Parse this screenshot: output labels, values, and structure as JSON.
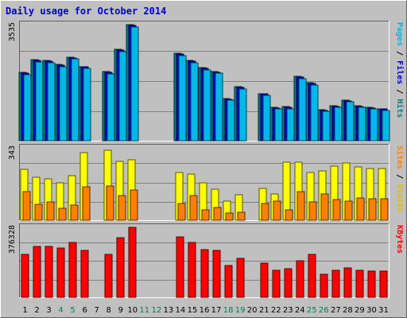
{
  "chart_data": {
    "type": "bar",
    "title": "Daily usage for October 2014",
    "days": [
      "1",
      "2",
      "3",
      "4",
      "5",
      "6",
      "7",
      "8",
      "9",
      "10",
      "11",
      "12",
      "13",
      "14",
      "15",
      "16",
      "17",
      "18",
      "19",
      "20",
      "21",
      "22",
      "23",
      "24",
      "25",
      "26",
      "27",
      "28",
      "29",
      "30",
      "31"
    ],
    "weekend_days": [
      "4",
      "5",
      "11",
      "12",
      "18",
      "19",
      "25",
      "26"
    ],
    "panels": [
      {
        "id": "hits",
        "ymax_label": "3535",
        "ymax": 3535,
        "right_labels": [
          {
            "text": "Pages",
            "color": "#00b8e6"
          },
          {
            "text": " / ",
            "color": "#000000"
          },
          {
            "text": "Files",
            "color": "#0000cc"
          },
          {
            "text": " / ",
            "color": "#000000"
          },
          {
            "text": "Hits",
            "color": "#008080"
          }
        ],
        "series": [
          {
            "name": "Hits",
            "color": "#008080",
            "values": [
              2090,
              2460,
              2440,
              2320,
              2550,
              2260,
              0,
              2100,
              2790,
              3535,
              0,
              0,
              0,
              2670,
              2440,
              2220,
              2110,
              1290,
              1640,
              0,
              1440,
              1010,
              1030,
              1960,
              1760,
              940,
              1060,
              1240,
              1070,
              1010,
              980
            ]
          },
          {
            "name": "Files",
            "color": "#0000cc",
            "values": [
              2070,
              2440,
              2420,
              2300,
              2530,
              2240,
              0,
              2080,
              2770,
              3510,
              0,
              0,
              0,
              2650,
              2420,
              2200,
              2090,
              1270,
              1620,
              0,
              1420,
              990,
              1010,
              1940,
              1740,
              920,
              1040,
              1220,
              1050,
              990,
              960
            ]
          },
          {
            "name": "Pages",
            "color": "#00b8e6",
            "values": [
              2020,
              2390,
              2380,
              2260,
              2490,
              2200,
              0,
              2030,
              2720,
              3470,
              0,
              0,
              0,
              2600,
              2380,
              2160,
              2050,
              1240,
              1580,
              0,
              1380,
              960,
              980,
              1890,
              1700,
              890,
              1010,
              1180,
              1020,
              960,
              930
            ]
          }
        ]
      },
      {
        "id": "visits",
        "ymax_label": "343",
        "ymax": 343,
        "right_labels": [
          {
            "text": "Sites",
            "color": "#ff8000"
          },
          {
            "text": " / ",
            "color": "#000000"
          },
          {
            "text": "Visits",
            "color": "#e0c000"
          }
        ],
        "series": [
          {
            "name": "Visits",
            "color": "#ffff00",
            "values": [
              243,
              205,
              196,
              178,
              210,
              320,
              0,
              330,
              280,
              287,
              0,
              0,
              0,
              227,
              220,
              178,
              146,
              91,
              119,
              0,
              150,
              124,
              274,
              274,
              227,
              234,
              255,
              270,
              251,
              244,
              244
            ]
          },
          {
            "name": "Sites",
            "color": "#ff8000",
            "values": [
              136,
              76,
              86,
              58,
              70,
              160,
              0,
              163,
              116,
              144,
              0,
              0,
              0,
              78,
              115,
              48,
              62,
              35,
              38,
              0,
              80,
              90,
              48,
              137,
              88,
              125,
              97,
              92,
              106,
              100,
              100
            ]
          }
        ]
      },
      {
        "id": "kbytes",
        "ymax_label": "376328",
        "ymax": 376328,
        "right_labels": [
          {
            "text": "KBytes",
            "color": "#ff0000"
          }
        ],
        "series": [
          {
            "name": "KBytes",
            "color": "#ff0000",
            "values": [
              233000,
              274000,
              274000,
              265000,
              296000,
              252000,
              0,
              233000,
              322000,
              376328,
              0,
              0,
              0,
              326000,
              296000,
              258000,
              252000,
              173000,
              209000,
              0,
              183000,
              146000,
              153000,
              195000,
              233000,
              126000,
              146000,
              157000,
              146000,
              139000,
              139000
            ]
          }
        ]
      }
    ]
  }
}
